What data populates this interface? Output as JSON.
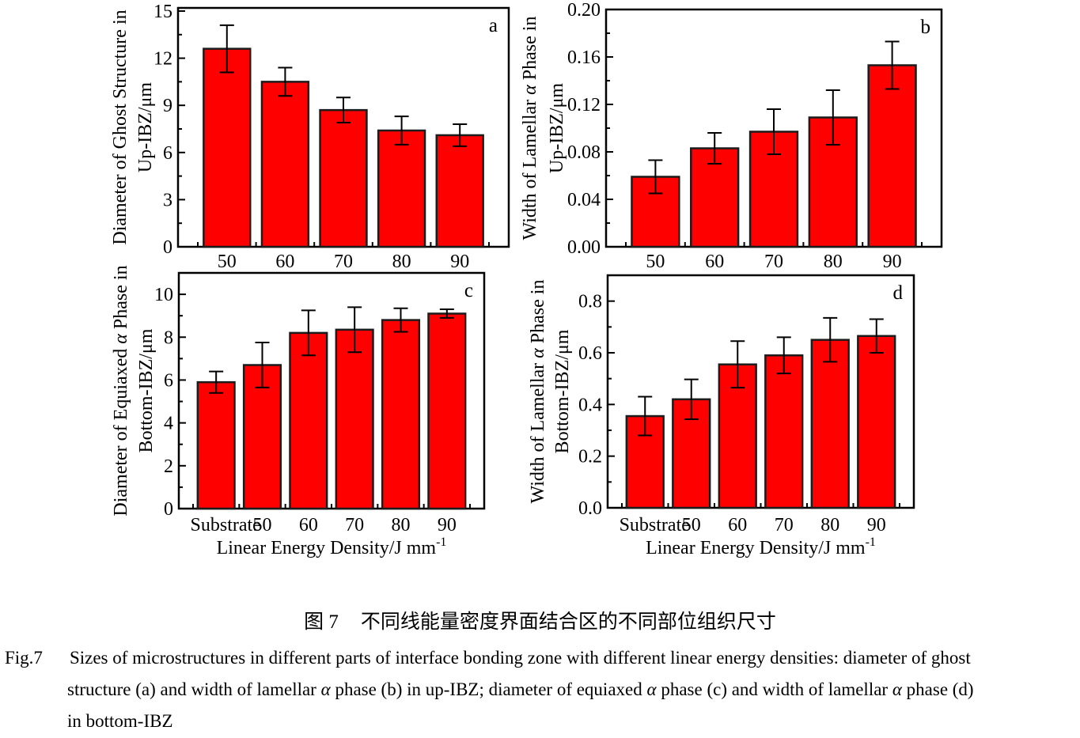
{
  "colors": {
    "bar_fill": "#ff0000",
    "bar_edge": "#1c1c1c",
    "axis": "#000000",
    "text": "#000000"
  },
  "caption": {
    "zh_label": "图 7",
    "zh_text": "不同线能量密度界面结合区的不同部位组织尺寸",
    "en_label": "Fig.7",
    "en_line1": "Sizes of microstructures in different parts of interface bonding zone with different linear energy densities: diameter of ghost",
    "en_line2": "structure (a) and width of lamellar α phase (b) in up-IBZ; diameter of equiaxed α phase (c) and width of lamellar α phase (d)",
    "en_line3": "in bottom-IBZ"
  },
  "chart_data": [
    {
      "type": "bar",
      "panel": "a",
      "title": "",
      "categories": [
        "50",
        "60",
        "70",
        "80",
        "90"
      ],
      "values": [
        12.6,
        10.5,
        8.7,
        7.4,
        7.1
      ],
      "errors": [
        1.5,
        0.9,
        0.8,
        0.9,
        0.7
      ],
      "ylabel_line1": "Diameter of Ghost Structure in",
      "ylabel_line2": "Up-IBZ/μm",
      "xlabel": "",
      "xlabel_sup": "",
      "ylim": [
        0,
        15.2
      ],
      "yticks": [
        0,
        3,
        6,
        9,
        12,
        15
      ],
      "ytick_labels": [
        "0",
        "3",
        "6",
        "9",
        "12",
        "15"
      ],
      "grid": false,
      "legend": "none"
    },
    {
      "type": "bar",
      "panel": "b",
      "title": "",
      "categories": [
        "50",
        "60",
        "70",
        "80",
        "90"
      ],
      "values": [
        0.059,
        0.083,
        0.097,
        0.109,
        0.153
      ],
      "errors": [
        0.014,
        0.013,
        0.019,
        0.023,
        0.02
      ],
      "ylabel_line1": "Width of Lamellar α Phase in",
      "ylabel_line2": "Up-IBZ/μm",
      "xlabel": "",
      "xlabel_sup": "",
      "ylim": [
        0,
        0.2
      ],
      "yticks": [
        0,
        0.04,
        0.08,
        0.12,
        0.16,
        0.2
      ],
      "ytick_labels": [
        "0.00",
        "0.04",
        "0.08",
        "0.12",
        "0.16",
        "0.20"
      ],
      "grid": false,
      "legend": "none"
    },
    {
      "type": "bar",
      "panel": "c",
      "title": "",
      "categories": [
        "Substrate",
        "50",
        "60",
        "70",
        "80",
        "90"
      ],
      "values": [
        5.9,
        6.7,
        8.2,
        8.35,
        8.8,
        9.1
      ],
      "errors": [
        0.5,
        1.05,
        1.05,
        1.05,
        0.55,
        0.2
      ],
      "ylabel_line1": "Diameter of Equiaxed α Phase in",
      "ylabel_line2": "Bottom-IBZ/μm",
      "xlabel": "Linear Energy Density/J mm",
      "xlabel_sup": "-1",
      "ylim": [
        0,
        11
      ],
      "yticks": [
        0,
        2,
        4,
        6,
        8,
        10
      ],
      "ytick_labels": [
        "0",
        "2",
        "4",
        "6",
        "8",
        "10"
      ],
      "grid": false,
      "legend": "none"
    },
    {
      "type": "bar",
      "panel": "d",
      "title": "",
      "categories": [
        "Substrate",
        "50",
        "60",
        "70",
        "80",
        "90"
      ],
      "values": [
        0.355,
        0.42,
        0.555,
        0.59,
        0.65,
        0.665
      ],
      "errors": [
        0.075,
        0.077,
        0.09,
        0.07,
        0.085,
        0.065
      ],
      "ylabel_line1": "Width of Lamellar α Phase in",
      "ylabel_line2": "Bottom-IBZ/μm",
      "xlabel": "Linear Energy Density/J mm",
      "xlabel_sup": "-1",
      "ylim": [
        0,
        0.9
      ],
      "yticks": [
        0,
        0.2,
        0.4,
        0.6,
        0.8
      ],
      "ytick_labels": [
        "0.0",
        "0.2",
        "0.4",
        "0.6",
        "0.8"
      ],
      "grid": false,
      "legend": "none"
    }
  ]
}
